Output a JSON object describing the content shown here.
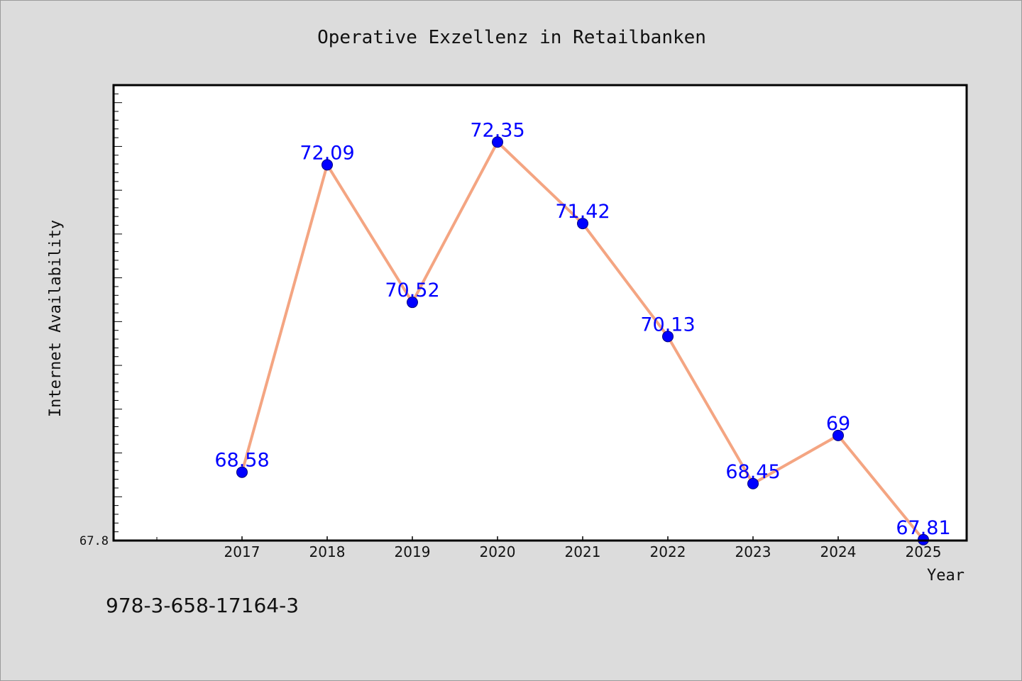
{
  "chart_data": {
    "type": "line",
    "title": "Operative Exzellenz in Retailbanken",
    "xlabel": "Year",
    "ylabel": "Internet Availability",
    "categories": [
      "2017",
      "2018",
      "2019",
      "2020",
      "2021",
      "2022",
      "2023",
      "2024",
      "2025"
    ],
    "series": [
      {
        "values": [
          68.58,
          72.09,
          70.52,
          72.35,
          71.42,
          70.13,
          68.45,
          69,
          67.81
        ],
        "data_labels": [
          "68.58",
          "72.09",
          "70.52",
          "72.35",
          "71.42",
          "70.13",
          "68.45",
          "69",
          "67.81"
        ]
      }
    ],
    "y_tick_labels": [
      "67.8"
    ],
    "ylim": [
      67.8,
      73.0
    ],
    "grid": false,
    "legend": "none",
    "colors": {
      "line": "#f4a582",
      "marker": "#0000ff",
      "data_label": "#0000ff",
      "plot_background": "#ffffff",
      "figure_background": "#dcdcdc"
    }
  },
  "footer": {
    "isbn": "978-3-658-17164-3"
  }
}
